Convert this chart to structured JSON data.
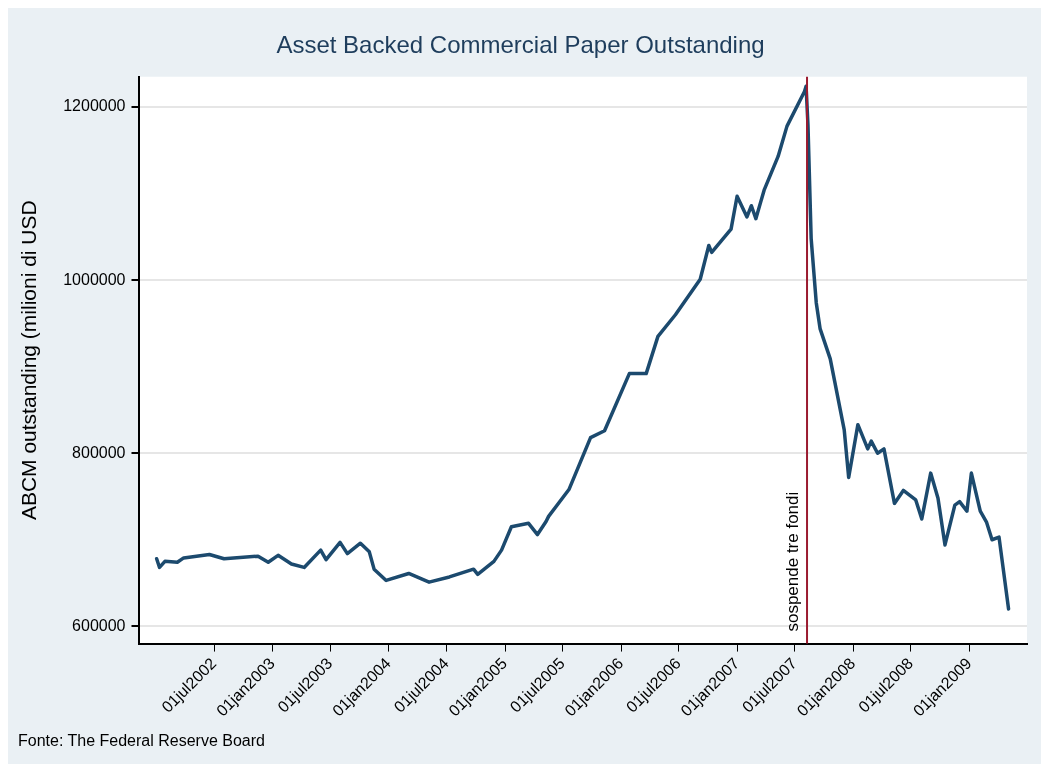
{
  "chart_data": {
    "type": "line",
    "title": "Asset Backed Commercial Paper Outstanding",
    "ylabel": "ABCM outstanding (milioni di USD",
    "annotations": [
      "Fonte: The Federal Reserve Board"
    ],
    "x": [
      "2002-01-01",
      "2002-01-10",
      "2002-01-27",
      "2002-03-07",
      "2002-03-27",
      "2002-06-16",
      "2002-08-01",
      "2002-11-16",
      "2002-12-18",
      "2003-01-18",
      "2003-03-01",
      "2003-04-10",
      "2003-06-01",
      "2003-06-18",
      "2003-08-01",
      "2003-08-24",
      "2003-10-04",
      "2003-11-01",
      "2003-11-16",
      "2003-12-24",
      "2004-03-04",
      "2004-05-07",
      "2004-07-10",
      "2004-09-24",
      "2004-10-07",
      "2004-11-27",
      "2004-12-21",
      "2005-01-21",
      "2005-03-16",
      "2005-04-13",
      "2005-05-10",
      "2005-05-18",
      "2005-07-21",
      "2005-09-27",
      "2005-11-10",
      "2006-01-27",
      "2006-03-21",
      "2006-04-27",
      "2006-06-21",
      "2006-09-07",
      "2006-10-04",
      "2006-10-13",
      "2006-12-13",
      "2007-01-01",
      "2007-02-01",
      "2007-02-15",
      "2007-03-01",
      "2007-03-27",
      "2007-05-10",
      "2007-06-07",
      "2007-08-01",
      "2007-08-06",
      "2007-08-12",
      "2007-08-22",
      "2007-09-07",
      "2007-09-19",
      "2007-10-21",
      "2007-11-04",
      "2007-12-04",
      "2007-12-18",
      "2008-01-16",
      "2008-02-16",
      "2008-02-27",
      "2008-03-18",
      "2008-04-07",
      "2008-05-10",
      "2008-06-07",
      "2008-07-16",
      "2008-08-04",
      "2008-09-01",
      "2008-09-24",
      "2008-10-16",
      "2008-11-16",
      "2008-12-01",
      "2008-12-24",
      "2009-01-07",
      "2009-02-04",
      "2009-02-24",
      "2009-03-13",
      "2009-04-04",
      "2009-05-04"
    ],
    "series": [
      {
        "color": "#1c4a6e",
        "values": [
          678000,
          668000,
          675000,
          674000,
          679000,
          683000,
          678000,
          681000,
          674000,
          682000,
          672000,
          668000,
          688000,
          677000,
          697000,
          684000,
          696000,
          686000,
          666000,
          653000,
          661000,
          651000,
          657000,
          666000,
          660000,
          675000,
          688000,
          715000,
          719000,
          706000,
          721000,
          727000,
          758000,
          818000,
          826000,
          892000,
          892000,
          935000,
          960000,
          1001000,
          1040000,
          1032000,
          1059000,
          1097000,
          1073000,
          1086000,
          1071000,
          1104000,
          1143000,
          1178000,
          1218000,
          1224000,
          1179000,
          1048000,
          974000,
          944000,
          909000,
          883000,
          827000,
          772000,
          833000,
          805000,
          814000,
          800000,
          805000,
          742000,
          757000,
          746000,
          724000,
          777000,
          748000,
          694000,
          740000,
          744000,
          733000,
          777000,
          733000,
          720000,
          700000,
          703000,
          620000
        ]
      }
    ],
    "xlim": [
      "2001-11-08",
      "2009-07-01"
    ],
    "xticks": [
      {
        "value": "2002-07-01",
        "label": "01jul2002"
      },
      {
        "value": "2003-01-01",
        "label": "01jan2003"
      },
      {
        "value": "2003-07-01",
        "label": "01jul2003"
      },
      {
        "value": "2004-01-01",
        "label": "01jan2004"
      },
      {
        "value": "2004-07-01",
        "label": "01jul2004"
      },
      {
        "value": "2005-01-01",
        "label": "01jan2005"
      },
      {
        "value": "2005-07-01",
        "label": "01jul2005"
      },
      {
        "value": "2006-01-01",
        "label": "01jan2006"
      },
      {
        "value": "2006-07-01",
        "label": "01jul2006"
      },
      {
        "value": "2007-01-01",
        "label": "01jan2007"
      },
      {
        "value": "2007-07-01",
        "label": "01jul2007"
      },
      {
        "value": "2008-01-01",
        "label": "01jan2008"
      },
      {
        "value": "2008-07-01",
        "label": "01jul2008"
      },
      {
        "value": "2009-01-01",
        "label": "01jan2009"
      }
    ],
    "ylim": [
      580000,
      1235000
    ],
    "yticks": [
      600000,
      800000,
      1000000,
      1200000
    ],
    "ref_lines": [
      {
        "axis": "x",
        "value": "2007-08-09",
        "label": "sospende tre fondi",
        "color": "#9b1b30"
      }
    ],
    "grid": "y",
    "legend": false,
    "marker": "none",
    "line_style": "solid"
  }
}
